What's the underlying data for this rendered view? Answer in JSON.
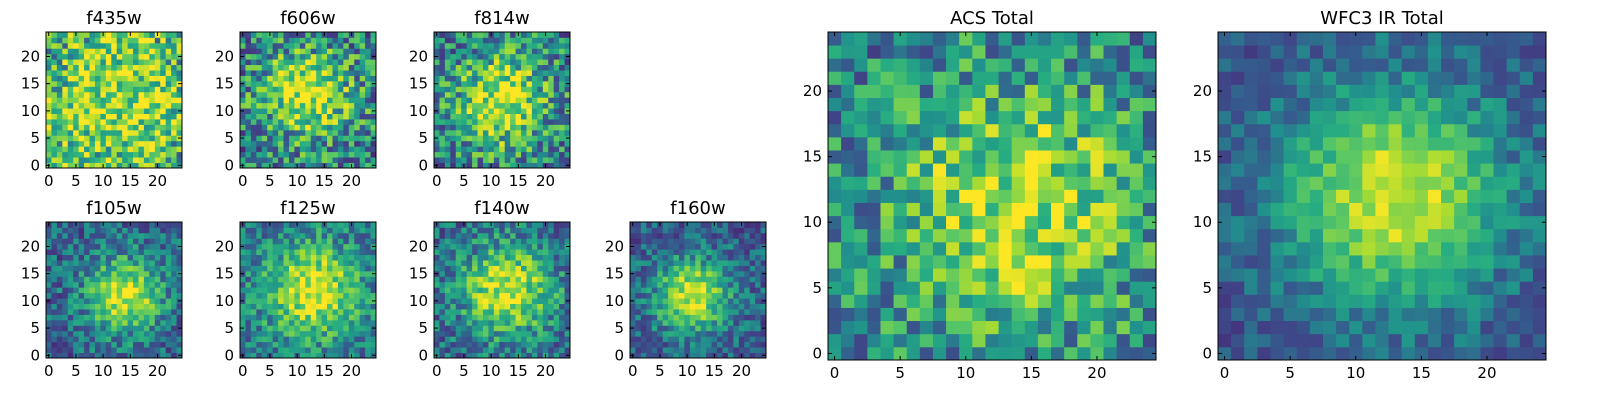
{
  "chart_data": [
    {
      "type": "heatmap",
      "title": "f435w",
      "xticks": [
        0,
        5,
        10,
        15,
        20
      ],
      "yticks": [
        0,
        5,
        10,
        15,
        20
      ],
      "xlim": [
        -0.5,
        24.5
      ],
      "ylim": [
        -0.5,
        24.5
      ],
      "grid": false,
      "colormap": "viridis",
      "profile": {
        "peak_center": [
          13,
          12
        ],
        "peak_width": 9,
        "peak_level": 0.3,
        "noise": 0.32,
        "base": 0.6
      }
    },
    {
      "type": "heatmap",
      "title": "f606w",
      "xticks": [
        0,
        5,
        10,
        15,
        20
      ],
      "yticks": [
        0,
        5,
        10,
        15,
        20
      ],
      "xlim": [
        -0.5,
        24.5
      ],
      "ylim": [
        -0.5,
        24.5
      ],
      "grid": false,
      "colormap": "viridis",
      "profile": {
        "peak_center": [
          12,
          13
        ],
        "peak_width": 6,
        "peak_level": 0.5,
        "noise": 0.32,
        "base": 0.45
      }
    },
    {
      "type": "heatmap",
      "title": "f814w",
      "xticks": [
        0,
        5,
        10,
        15,
        20
      ],
      "yticks": [
        0,
        5,
        10,
        15,
        20
      ],
      "xlim": [
        -0.5,
        24.5
      ],
      "ylim": [
        -0.5,
        24.5
      ],
      "grid": false,
      "colormap": "viridis",
      "profile": {
        "peak_center": [
          12,
          12
        ],
        "peak_width": 6,
        "peak_level": 0.5,
        "noise": 0.3,
        "base": 0.45
      }
    },
    {
      "type": "heatmap",
      "title": "f105w",
      "xticks": [
        0,
        5,
        10,
        15,
        20
      ],
      "yticks": [
        0,
        5,
        10,
        15,
        20
      ],
      "xlim": [
        -0.5,
        24.5
      ],
      "ylim": [
        -0.5,
        24.5
      ],
      "grid": false,
      "colormap": "viridis",
      "profile": {
        "peak_center": [
          14,
          11
        ],
        "peak_width": 5,
        "peak_level": 0.6,
        "noise": 0.2,
        "base": 0.35
      }
    },
    {
      "type": "heatmap",
      "title": "f125w",
      "xticks": [
        0,
        5,
        10,
        15,
        20
      ],
      "yticks": [
        0,
        5,
        10,
        15,
        20
      ],
      "xlim": [
        -0.5,
        24.5
      ],
      "ylim": [
        -0.5,
        24.5
      ],
      "grid": false,
      "colormap": "viridis",
      "profile": {
        "peak_center": [
          13,
          12
        ],
        "peak_width": 6.5,
        "peak_level": 0.55,
        "noise": 0.2,
        "base": 0.4
      }
    },
    {
      "type": "heatmap",
      "title": "f140w",
      "xticks": [
        0,
        5,
        10,
        15,
        20
      ],
      "yticks": [
        0,
        5,
        10,
        15,
        20
      ],
      "xlim": [
        -0.5,
        24.5
      ],
      "ylim": [
        -0.5,
        24.5
      ],
      "grid": false,
      "colormap": "viridis",
      "profile": {
        "peak_center": [
          13,
          12
        ],
        "peak_width": 6,
        "peak_level": 0.55,
        "noise": 0.22,
        "base": 0.38
      }
    },
    {
      "type": "heatmap",
      "title": "f160w",
      "xticks": [
        0,
        5,
        10,
        15,
        20
      ],
      "yticks": [
        0,
        5,
        10,
        15,
        20
      ],
      "xlim": [
        -0.5,
        24.5
      ],
      "ylim": [
        -0.5,
        24.5
      ],
      "grid": false,
      "colormap": "viridis",
      "profile": {
        "peak_center": [
          11,
          11
        ],
        "peak_width": 5,
        "peak_level": 0.6,
        "noise": 0.18,
        "base": 0.33
      }
    },
    {
      "type": "heatmap",
      "title": "ACS Total",
      "xticks": [
        0,
        5,
        10,
        15,
        20
      ],
      "yticks": [
        0,
        5,
        10,
        15,
        20
      ],
      "xlim": [
        -0.5,
        24.5
      ],
      "ylim": [
        -0.5,
        24.5
      ],
      "grid": false,
      "colormap": "viridis",
      "profile": {
        "peak_center": [
          14,
          11
        ],
        "peak_width": 7,
        "peak_level": 0.45,
        "noise": 0.26,
        "base": 0.45
      }
    },
    {
      "type": "heatmap",
      "title": "WFC3 IR Total",
      "xticks": [
        0,
        5,
        10,
        15,
        20
      ],
      "yticks": [
        0,
        5,
        10,
        15,
        20
      ],
      "xlim": [
        -0.5,
        24.5
      ],
      "ylim": [
        -0.5,
        24.5
      ],
      "grid": false,
      "colormap": "viridis",
      "profile": {
        "peak_center": [
          13,
          12
        ],
        "peak_width": 6,
        "peak_level": 0.65,
        "noise": 0.12,
        "base": 0.3
      }
    }
  ]
}
